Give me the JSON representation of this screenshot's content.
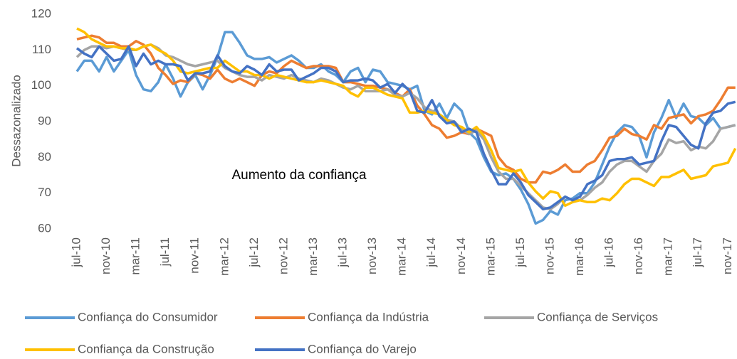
{
  "chart_data": {
    "type": "line",
    "y_label": "Dessazonalizado",
    "annotation": "Aumento da confiança",
    "categories": [
      "jul-10",
      null,
      null,
      null,
      "nov-10",
      null,
      null,
      null,
      "mar-11",
      null,
      null,
      null,
      "jul-11",
      null,
      null,
      null,
      "nov-11",
      null,
      null,
      null,
      "mar-12",
      null,
      null,
      null,
      "jul-12",
      null,
      null,
      null,
      "nov-12",
      null,
      null,
      null,
      "mar-13",
      null,
      null,
      null,
      "jul-13",
      null,
      null,
      null,
      "nov-13",
      null,
      null,
      null,
      "mar-14",
      null,
      null,
      null,
      "jul-14",
      null,
      null,
      null,
      "nov-14",
      null,
      null,
      null,
      "mar-15",
      null,
      null,
      null,
      "jul-15",
      null,
      null,
      null,
      "nov-15",
      null,
      null,
      null,
      "mar-16",
      null,
      null,
      null,
      "jul-16",
      null,
      null,
      null,
      "nov-16",
      null,
      null,
      null,
      "mar-17",
      null,
      null,
      null,
      "jul-17",
      null,
      null,
      null,
      "nov-17",
      null
    ],
    "ylim": [
      60,
      120
    ],
    "yticks": [
      60,
      70,
      80,
      90,
      100,
      110,
      120
    ],
    "grid": false,
    "series": [
      {
        "name": "Confiança do Consumidor",
        "color": "#5b9bd5",
        "values": [
          104,
          107,
          107,
          104,
          108,
          104,
          107,
          110,
          103,
          99,
          98.5,
          101,
          106,
          102,
          97,
          101,
          103,
          99,
          103,
          108,
          115,
          115,
          112,
          108.5,
          107.5,
          107.5,
          108,
          106.5,
          107.5,
          108.5,
          107,
          105,
          105,
          106,
          104,
          103,
          101,
          104,
          105,
          101,
          104.5,
          104,
          101,
          100.5,
          100,
          99,
          100,
          93,
          92,
          95,
          91,
          95,
          93,
          87,
          85,
          80,
          76,
          75,
          75.5,
          74,
          71,
          67,
          61.5,
          62.5,
          65,
          64,
          68,
          68.5,
          70,
          70,
          73,
          78,
          83,
          87,
          89,
          88.5,
          86,
          80,
          87,
          91,
          96,
          91,
          95,
          91.5,
          91,
          89,
          91,
          88,
          88.5,
          89
        ]
      },
      {
        "name": "Confiança da Indústria",
        "color": "#ed7d31",
        "values": [
          113,
          113.5,
          114,
          113.5,
          112,
          112,
          111,
          111,
          112.5,
          111.5,
          109,
          105,
          103,
          100.5,
          101.5,
          101,
          103.5,
          103,
          102,
          104.5,
          102,
          101,
          102,
          101,
          100,
          103,
          104,
          103.5,
          105.5,
          107,
          106,
          105,
          105.5,
          105.5,
          105.5,
          105,
          101,
          101,
          100.5,
          100,
          100,
          99.5,
          99,
          98,
          97,
          99,
          94.5,
          92,
          89,
          88,
          85.5,
          86,
          87,
          86.5,
          88,
          87,
          86,
          80,
          77.5,
          76.5,
          74,
          73,
          73,
          76,
          75.5,
          76.5,
          78,
          76,
          76,
          78,
          79,
          82,
          85.5,
          86,
          88,
          86.5,
          86,
          85,
          89,
          88,
          91,
          91.5,
          92,
          89.5,
          91.5,
          92,
          93,
          96,
          99.5,
          99.5
        ]
      },
      {
        "name": "Confiança de Serviços",
        "color": "#a5a5a5",
        "values": [
          108,
          110,
          111,
          111,
          110.5,
          111,
          110.5,
          110,
          110,
          111,
          111.5,
          110.5,
          108.5,
          108,
          107,
          106,
          105.5,
          106,
          106.5,
          107,
          105,
          104,
          103,
          102.5,
          102.5,
          101.5,
          103,
          102.5,
          102,
          103,
          102,
          101.5,
          101,
          102,
          101.5,
          100.5,
          99.5,
          99,
          100,
          98.5,
          98.5,
          98.5,
          99,
          97.5,
          97,
          98,
          96.5,
          94,
          93,
          92,
          90.5,
          90,
          88,
          86.5,
          87.5,
          85,
          80,
          76,
          74,
          74,
          72,
          70,
          68,
          66,
          65.5,
          67,
          69,
          68,
          68,
          69.5,
          71.5,
          73,
          76,
          78,
          79,
          79,
          77.5,
          76,
          79,
          81,
          85,
          84,
          84.5,
          82,
          83,
          82.5,
          84.5,
          88,
          88.5,
          89
        ]
      },
      {
        "name": "Confiança da Construção",
        "color": "#ffc000",
        "values": [
          116,
          115,
          113,
          112,
          111,
          111,
          110.5,
          110.5,
          110,
          111,
          111.5,
          110,
          109,
          107,
          104,
          103.5,
          104,
          104.5,
          105,
          105,
          107,
          105.5,
          104,
          104,
          103,
          103,
          102,
          103,
          102.5,
          102,
          101.5,
          101,
          101,
          101.5,
          101,
          100.5,
          100,
          98,
          97,
          99.5,
          99.5,
          98.5,
          97.5,
          97,
          96.5,
          92.5,
          92.5,
          93,
          92.5,
          92,
          90.5,
          89,
          88.5,
          87,
          88.5,
          86,
          82,
          77,
          76.5,
          76,
          76.5,
          73,
          70.5,
          68.5,
          70.5,
          70,
          66.5,
          67.5,
          68,
          67.5,
          67.5,
          68.5,
          68,
          70,
          72.5,
          74,
          74,
          73,
          72,
          74.5,
          74.5,
          75.5,
          76.5,
          74,
          74.5,
          75,
          77.5,
          78,
          78.5,
          82.5
        ]
      },
      {
        "name": "Confiança do Varejo",
        "color": "#4472c4",
        "values": [
          110.5,
          109,
          108,
          111,
          109,
          107,
          107.5,
          111,
          105.5,
          109,
          106,
          107,
          106,
          106,
          105.5,
          101.5,
          103.5,
          103.5,
          104,
          108.5,
          105.5,
          104,
          103.5,
          105.5,
          104.5,
          103,
          106,
          104,
          104.5,
          104.5,
          101.5,
          102.5,
          103.5,
          105,
          105,
          104,
          101,
          101.5,
          101.5,
          102,
          101.5,
          99.5,
          100.5,
          98,
          100.5,
          98.5,
          93,
          92.5,
          96,
          91.5,
          89.5,
          90,
          87,
          88,
          87,
          81,
          76.5,
          72.5,
          72.5,
          75.5,
          73,
          69.5,
          67.5,
          65.5,
          66,
          67.5,
          69,
          68,
          69,
          72.5,
          73.5,
          75,
          79,
          79.5,
          79.5,
          80,
          78,
          78.5,
          79,
          84.5,
          89,
          88.5,
          86,
          83.5,
          82.5,
          89.5,
          92.5,
          93,
          95,
          95.5
        ]
      }
    ]
  }
}
